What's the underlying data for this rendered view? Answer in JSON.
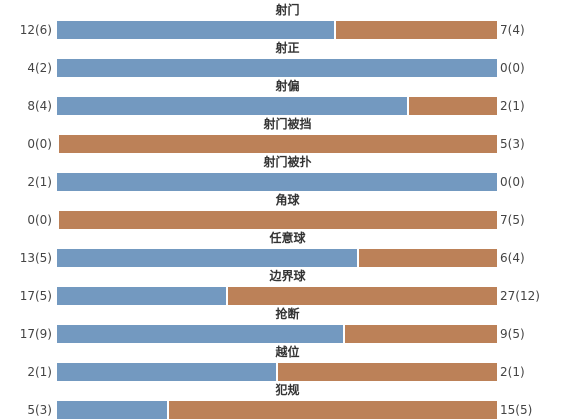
{
  "chart_data": {
    "type": "bar",
    "colors": {
      "home": "#7399c0",
      "away": "#bc8158"
    },
    "categories": [
      "射门",
      "射正",
      "射偏",
      "射门被挡",
      "射门被扑",
      "角球",
      "任意球",
      "边界球",
      "抢断",
      "越位",
      "犯规"
    ],
    "series": [
      {
        "values": [
          12,
          4,
          8,
          0,
          2,
          0,
          13,
          17,
          17,
          2,
          5
        ],
        "labels": [
          "12(6)",
          "4(2)",
          "8(4)",
          "0(0)",
          "2(1)",
          "0(0)",
          "13(5)",
          "17(5)",
          "17(9)",
          "2(1)",
          "5(3)"
        ]
      },
      {
        "values": [
          7,
          0,
          2,
          5,
          0,
          7,
          6,
          27,
          9,
          2,
          15
        ],
        "labels": [
          "7(4)",
          "0(0)",
          "2(1)",
          "5(3)",
          "0(0)",
          "7(5)",
          "6(4)",
          "27(12)",
          "9(5)",
          "2(1)",
          "15(5)"
        ]
      }
    ]
  }
}
